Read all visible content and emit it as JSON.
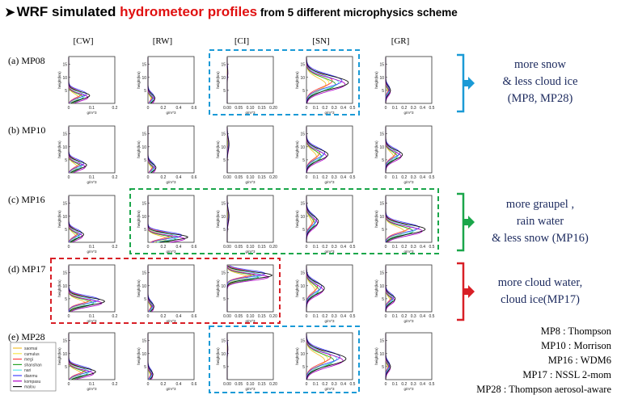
{
  "title": {
    "arrow": "➤",
    "part1": "WRF simulated ",
    "part2": "hydrometeor profiles",
    "part3": " from 5 different microphysics scheme",
    "highlight_color": "#e01010"
  },
  "column_titles": [
    "[CW]",
    "[RW]",
    "[CI]",
    "[SN]",
    "[GR]"
  ],
  "row_labels": [
    "(a) MP08",
    "(b) MP10",
    "(c) MP16",
    "(d) MP17",
    "(e) MP28"
  ],
  "notes": [
    {
      "lines": [
        "more snow",
        "& less cloud ice",
        "(MP8, MP28)"
      ],
      "color": "#1a9ad6"
    },
    {
      "lines": [
        "more graupel ,",
        "rain water",
        "& less snow (MP16)"
      ],
      "color": "#1aa64a"
    },
    {
      "lines": [
        "more cloud water,",
        "cloud ice(MP17)"
      ],
      "color": "#d81f26"
    }
  ],
  "schemes": [
    "MP8 : Thompson",
    "MP10 : Morrison",
    "MP16 : WDM6",
    "MP17 : NSSL 2-mom",
    "MP28 : Thompson aerosol-aware"
  ],
  "legend": [
    "saomai",
    "cumulus",
    "megi",
    "shanshan",
    "nari",
    "dianmu",
    "kompasu",
    "malou"
  ],
  "legend_colors": [
    "#f2c230",
    "#f5e64b",
    "#ff4040",
    "#2aa52a",
    "#55e8e8",
    "#4444ff",
    "#b000c8",
    "#101010"
  ],
  "chart_data": {
    "type": "line",
    "ylabel": "height(km)",
    "xlabel": "g/m^3",
    "ylim": [
      0,
      18
    ],
    "yticks": [
      5,
      10,
      15
    ],
    "columns": [
      {
        "name": "CW",
        "xlim": [
          0,
          0.2
        ],
        "xticks": [
          "0",
          "0.1",
          "0.2"
        ]
      },
      {
        "name": "RW",
        "xlim": [
          0,
          0.6
        ],
        "xticks": [
          "0",
          "0.2",
          "0.4",
          "0.6"
        ]
      },
      {
        "name": "CI",
        "xlim": [
          0,
          0.2
        ],
        "xticks": [
          "0.00",
          "0.05",
          "0.10",
          "0.15",
          "0.20"
        ]
      },
      {
        "name": "SN",
        "xlim": [
          0,
          0.5
        ],
        "xticks": [
          "0",
          "0.1",
          "0.2",
          "0.3",
          "0.4",
          "0.5"
        ]
      },
      {
        "name": "GR",
        "xlim": [
          0,
          0.5
        ],
        "xticks": [
          "0",
          "0.1",
          "0.2",
          "0.3",
          "0.4",
          "0.5"
        ]
      }
    ],
    "profiles": {
      "MP08": {
        "CW": {
          "peak": 0.07,
          "height": 3,
          "width": 2
        },
        "RW": {
          "peak": 0.07,
          "height": 2,
          "width": 2
        },
        "CI": {
          "peak": 0.002,
          "height": 12,
          "width": 2
        },
        "SN": {
          "peak": 0.35,
          "height": 8,
          "width": 3.5
        },
        "GR": {
          "peak": 0.04,
          "height": 5,
          "width": 2
        }
      },
      "MP10": {
        "CW": {
          "peak": 0.06,
          "height": 3,
          "width": 2
        },
        "RW": {
          "peak": 0.08,
          "height": 2,
          "width": 2
        },
        "CI": {
          "peak": 0.006,
          "height": 11,
          "width": 3
        },
        "SN": {
          "peak": 0.18,
          "height": 7,
          "width": 3
        },
        "GR": {
          "peak": 0.14,
          "height": 7,
          "width": 2.5
        }
      },
      "MP16": {
        "CW": {
          "peak": 0.05,
          "height": 3,
          "width": 2
        },
        "RW": {
          "peak": 0.4,
          "height": 2,
          "width": 1.8
        },
        "CI": {
          "peak": 0.006,
          "height": 10,
          "width": 3
        },
        "SN": {
          "peak": 0.1,
          "height": 8,
          "width": 3
        },
        "GR": {
          "peak": 0.33,
          "height": 5,
          "width": 2.5
        }
      },
      "MP17": {
        "CW": {
          "peak": 0.12,
          "height": 4,
          "width": 2
        },
        "RW": {
          "peak": 0.06,
          "height": 2,
          "width": 2
        },
        "CI": {
          "peak": 0.15,
          "height": 14,
          "width": 1.8
        },
        "SN": {
          "peak": 0.15,
          "height": 9,
          "width": 3
        },
        "GR": {
          "peak": 0.08,
          "height": 5,
          "width": 2
        }
      },
      "MP28": {
        "CW": {
          "peak": 0.09,
          "height": 3,
          "width": 2
        },
        "RW": {
          "peak": 0.05,
          "height": 2,
          "width": 2
        },
        "CI": {
          "peak": 0.002,
          "height": 12,
          "width": 2
        },
        "SN": {
          "peak": 0.33,
          "height": 8,
          "width": 3.5
        },
        "GR": {
          "peak": 0.04,
          "height": 5,
          "width": 2
        }
      }
    },
    "highlight_boxes": [
      {
        "row": 0,
        "col_start": 2,
        "col_end": 3,
        "color": "#1a9ad6"
      },
      {
        "row": 2,
        "col_start": 1,
        "col_end": 4,
        "color": "#1aa64a"
      },
      {
        "row": 3,
        "col_start": 0,
        "col_end": 2,
        "color": "#d81f26"
      },
      {
        "row": 4,
        "col_start": 2,
        "col_end": 3,
        "color": "#1a9ad6"
      }
    ]
  }
}
